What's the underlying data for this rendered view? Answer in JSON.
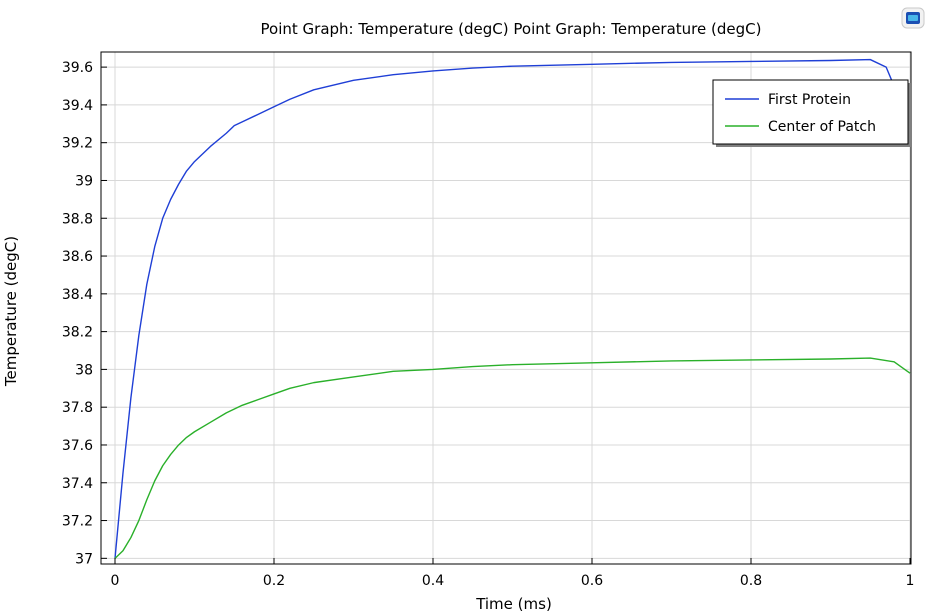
{
  "chart_data": {
    "type": "line",
    "title": "Point Graph: Temperature (degC)  Point Graph: Temperature (degC)",
    "xlabel": "Time (ms)",
    "ylabel": "Temperature (degC)",
    "xlim": [
      0,
      1
    ],
    "ylim": [
      36.97,
      39.68
    ],
    "x_ticks": [
      0,
      0.2,
      0.4,
      0.6,
      0.8,
      1
    ],
    "x_tick_labels": [
      "0",
      "0.2",
      "0.4",
      "0.6",
      "0.8",
      "1"
    ],
    "y_ticks": [
      37,
      37.2,
      37.4,
      37.6,
      37.8,
      38,
      38.2,
      38.4,
      38.6,
      38.8,
      39,
      39.2,
      39.4,
      39.6
    ],
    "y_tick_labels": [
      "37",
      "37.2",
      "37.4",
      "37.6",
      "37.8",
      "38",
      "38.2",
      "38.4",
      "38.6",
      "38.8",
      "39",
      "39.2",
      "39.4",
      "39.6"
    ],
    "grid": true,
    "legend_position": "top-right",
    "series": [
      {
        "name": "First Protein",
        "color": "#1f3fd6",
        "x": [
          0,
          0.01,
          0.02,
          0.03,
          0.04,
          0.05,
          0.06,
          0.07,
          0.08,
          0.09,
          0.1,
          0.12,
          0.14,
          0.15,
          0.16,
          0.18,
          0.2,
          0.22,
          0.25,
          0.3,
          0.35,
          0.4,
          0.45,
          0.5,
          0.6,
          0.7,
          0.8,
          0.9,
          0.95,
          0.97,
          0.99,
          1.0
        ],
        "y": [
          37.0,
          37.45,
          37.85,
          38.18,
          38.45,
          38.65,
          38.8,
          38.9,
          38.98,
          39.05,
          39.1,
          39.18,
          39.25,
          39.29,
          39.31,
          39.35,
          39.39,
          39.43,
          39.48,
          39.53,
          39.56,
          39.58,
          39.595,
          39.605,
          39.615,
          39.625,
          39.63,
          39.635,
          39.64,
          39.6,
          39.4,
          39.22
        ]
      },
      {
        "name": "Center of Patch",
        "color": "#2ab02a",
        "x": [
          0,
          0.01,
          0.02,
          0.03,
          0.04,
          0.05,
          0.06,
          0.07,
          0.08,
          0.09,
          0.1,
          0.12,
          0.14,
          0.16,
          0.18,
          0.2,
          0.22,
          0.25,
          0.3,
          0.35,
          0.4,
          0.45,
          0.5,
          0.6,
          0.7,
          0.8,
          0.9,
          0.95,
          0.98,
          1.0
        ],
        "y": [
          37.0,
          37.04,
          37.11,
          37.2,
          37.31,
          37.41,
          37.49,
          37.55,
          37.6,
          37.64,
          37.67,
          37.72,
          37.77,
          37.81,
          37.84,
          37.87,
          37.9,
          37.93,
          37.96,
          37.99,
          38.0,
          38.015,
          38.025,
          38.035,
          38.045,
          38.05,
          38.055,
          38.06,
          38.04,
          37.98
        ]
      }
    ]
  },
  "toolbar": {
    "icon": "window-icon"
  }
}
